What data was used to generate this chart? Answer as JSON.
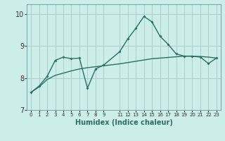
{
  "xlabel": "Humidex (Indice chaleur)",
  "bg_color": "#cceee8",
  "line_color": "#2e6e62",
  "grid_color": "#aacccc",
  "ylim": [
    7.0,
    10.3
  ],
  "yticks": [
    7,
    8,
    9,
    10
  ],
  "xlim": [
    -0.5,
    23.5
  ],
  "curve1_x": [
    0,
    1,
    2,
    3,
    4,
    5,
    6,
    7,
    8,
    9,
    11,
    12,
    13,
    14,
    15,
    16,
    17,
    18,
    19,
    20,
    21,
    22,
    23
  ],
  "curve1_y": [
    7.55,
    7.75,
    8.05,
    8.55,
    8.65,
    8.6,
    8.62,
    7.68,
    8.28,
    8.4,
    8.82,
    9.22,
    9.55,
    9.92,
    9.75,
    9.3,
    9.05,
    8.75,
    8.68,
    8.68,
    8.65,
    8.45,
    8.62
  ],
  "curve2_x": [
    0,
    1,
    2,
    3,
    4,
    5,
    6,
    7,
    8,
    9,
    11,
    12,
    13,
    14,
    15,
    16,
    17,
    18,
    19,
    20,
    21,
    22,
    23
  ],
  "curve2_y": [
    7.55,
    7.72,
    7.95,
    8.08,
    8.15,
    8.22,
    8.28,
    8.32,
    8.35,
    8.38,
    8.44,
    8.48,
    8.52,
    8.56,
    8.6,
    8.62,
    8.64,
    8.66,
    8.68,
    8.68,
    8.67,
    8.65,
    8.62
  ],
  "xtick_positions": [
    0,
    1,
    2,
    3,
    4,
    5,
    6,
    7,
    8,
    9,
    11,
    12,
    13,
    14,
    15,
    16,
    17,
    18,
    19,
    20,
    21,
    22,
    23
  ],
  "xtick_labels": [
    "0",
    "1",
    "2",
    "3",
    "4",
    "5",
    "6",
    "7",
    "8",
    "9",
    "11",
    "12",
    "13",
    "14",
    "15",
    "16",
    "17",
    "18",
    "19",
    "20",
    "21",
    "22",
    "23"
  ]
}
